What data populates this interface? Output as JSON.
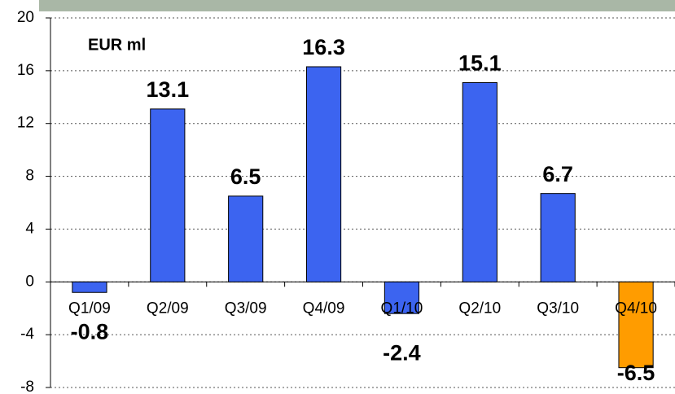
{
  "chart_data": {
    "type": "bar",
    "annotation": "EUR ml",
    "categories": [
      "Q1/09",
      "Q2/09",
      "Q3/09",
      "Q4/09",
      "Q1/10",
      "Q2/10",
      "Q3/10",
      "Q4/10"
    ],
    "values": [
      -0.8,
      13.1,
      6.5,
      16.3,
      -2.4,
      15.1,
      6.7,
      -6.5
    ],
    "colors": [
      "#3c64f0",
      "#3c64f0",
      "#3c64f0",
      "#3c64f0",
      "#3c64f0",
      "#3c64f0",
      "#3c64f0",
      "#ff9c00"
    ],
    "ylim": [
      -8,
      20
    ],
    "yticks": [
      -8,
      -4,
      0,
      4,
      8,
      12,
      16,
      20
    ],
    "grid": true
  }
}
